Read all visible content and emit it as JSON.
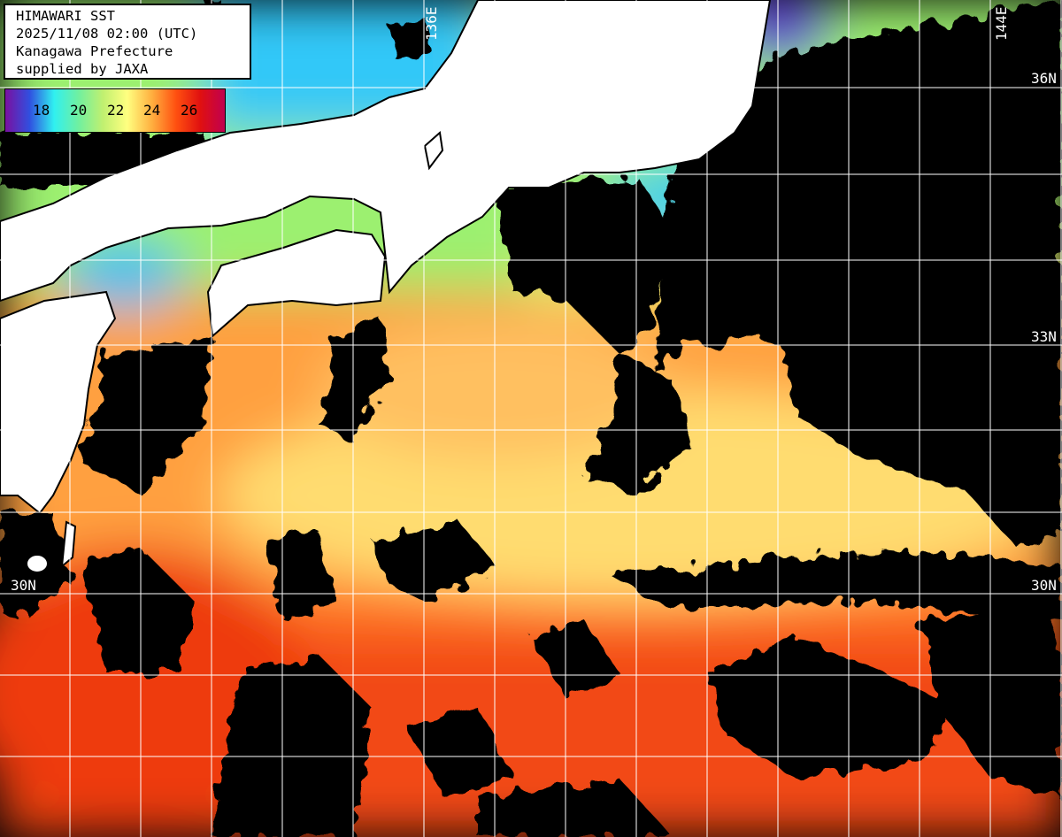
{
  "info": {
    "title": "HIMAWARI SST",
    "datetime": "2025/11/08 02:00 (UTC)",
    "region": "Kanagawa Prefecture",
    "credit": "supplied by JAXA"
  },
  "colorbar": {
    "unit_labels": [
      "18",
      "20",
      "22",
      "24",
      "26"
    ],
    "colors": [
      "#7a10a0",
      "#3050e0",
      "#30f0f0",
      "#70f0a0",
      "#c0f070",
      "#ffff80",
      "#ffb040",
      "#ff5010",
      "#e01010",
      "#c00050"
    ]
  },
  "grid_labels": {
    "lon_136": "136E",
    "lon_144": "144E",
    "lat_36": "36N",
    "lat_33": "33N",
    "lat_30_left": "30N",
    "lat_30_right": "30N"
  },
  "colors": {
    "land": "#ffffff",
    "cloud_no_data": "#000000",
    "grid": "#ffffff"
  }
}
